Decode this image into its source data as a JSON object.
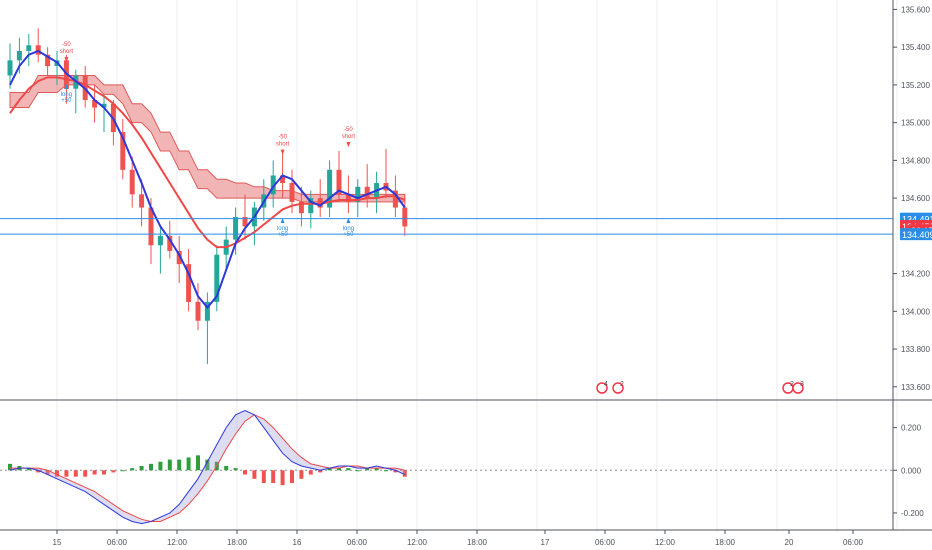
{
  "colors": {
    "up": "#26a69a",
    "down": "#ef5350",
    "ema_fast": "#2e38d8",
    "ema_slow": "#f04848",
    "cloud_red": "#e05a5a",
    "cloud_green": "#2e8b3e",
    "mid_green": "#2e9e3a",
    "price_line": "#2b8ee6",
    "price_badge_red": "#f23645",
    "price_badge_blue": "#2b8ee6",
    "grid": "#eceef2",
    "axis_text": "#50535e",
    "macd_line": "#2e38d8",
    "signal_line": "#f04848"
  },
  "price_axis": {
    "ticks": [
      "135.600",
      "135.400",
      "135.200",
      "135.000",
      "134.800",
      "134.600",
      "134.200",
      "134.000",
      "133.800",
      "133.600"
    ],
    "range": [
      133.53,
      135.65
    ]
  },
  "price_badges": [
    {
      "label": "134.491",
      "value": 134.491,
      "kind": "blue"
    },
    {
      "label": "134.452",
      "value": 134.452,
      "kind": "red"
    },
    {
      "label": "26:15",
      "value": 134.43,
      "kind": "red-small"
    },
    {
      "label": "134.409",
      "value": 134.409,
      "kind": "blue"
    }
  ],
  "macd_axis": {
    "ticks": [
      "0.200",
      "0.000",
      "-0.200"
    ],
    "range": [
      -0.28,
      0.32
    ]
  },
  "time_axis": {
    "labels": [
      "15",
      "06:00",
      "12:00",
      "18:00",
      "16",
      "06:00",
      "12:00",
      "18:00",
      "17",
      "06:00",
      "12:00",
      "18:00",
      "20",
      "06:00"
    ]
  },
  "signals": [
    {
      "text": "-50",
      "kind": "short"
    },
    {
      "text": "short",
      "kind": "short"
    },
    {
      "text": "long",
      "kind": "long"
    },
    {
      "text": "+50",
      "kind": "long"
    },
    {
      "text": "-50",
      "kind": "short"
    },
    {
      "text": "short",
      "kind": "short"
    },
    {
      "text": "long",
      "kind": "long"
    },
    {
      "text": "+50",
      "kind": "long"
    },
    {
      "text": "-50",
      "kind": "short"
    },
    {
      "text": "short",
      "kind": "short"
    },
    {
      "text": "long",
      "kind": "long"
    },
    {
      "text": "+50",
      "kind": "long"
    }
  ],
  "events": [
    {
      "count": "4"
    },
    {
      "count": "2"
    },
    {
      "count": "2"
    },
    {
      "count": "3"
    }
  ],
  "chart_data": {
    "type": "candlestick",
    "instrument_price_axis": "right",
    "price_ohlc": [
      [
        135.25,
        135.42,
        135.18,
        135.33
      ],
      [
        135.33,
        135.45,
        135.26,
        135.38
      ],
      [
        135.38,
        135.47,
        135.3,
        135.41
      ],
      [
        135.41,
        135.5,
        135.32,
        135.36
      ],
      [
        135.36,
        135.4,
        135.25,
        135.3
      ],
      [
        135.3,
        135.38,
        135.2,
        135.33
      ],
      [
        135.33,
        135.36,
        135.1,
        135.18
      ],
      [
        135.18,
        135.28,
        135.05,
        135.25
      ],
      [
        135.25,
        135.3,
        135.08,
        135.12
      ],
      [
        135.12,
        135.2,
        135.0,
        135.08
      ],
      [
        135.08,
        135.15,
        134.95,
        135.1
      ],
      [
        135.1,
        135.12,
        134.88,
        134.95
      ],
      [
        134.95,
        135.02,
        134.7,
        134.75
      ],
      [
        134.75,
        134.82,
        134.55,
        134.62
      ],
      [
        134.62,
        134.7,
        134.45,
        134.55
      ],
      [
        134.55,
        134.6,
        134.25,
        134.35
      ],
      [
        134.35,
        134.45,
        134.2,
        134.4
      ],
      [
        134.4,
        134.48,
        134.28,
        134.32
      ],
      [
        134.32,
        134.4,
        134.15,
        134.25
      ],
      [
        134.25,
        134.33,
        134.0,
        134.05
      ],
      [
        134.05,
        134.15,
        133.9,
        133.95
      ],
      [
        133.95,
        134.1,
        133.72,
        134.05
      ],
      [
        134.05,
        134.35,
        134.0,
        134.3
      ],
      [
        134.3,
        134.45,
        134.22,
        134.38
      ],
      [
        134.38,
        134.55,
        134.3,
        134.5
      ],
      [
        134.5,
        134.62,
        134.38,
        134.45
      ],
      [
        134.45,
        134.58,
        134.35,
        134.55
      ],
      [
        134.55,
        134.7,
        134.48,
        134.62
      ],
      [
        134.62,
        134.8,
        134.55,
        134.72
      ],
      [
        134.72,
        134.85,
        134.6,
        134.68
      ],
      [
        134.68,
        134.75,
        134.52,
        134.58
      ],
      [
        134.58,
        134.66,
        134.45,
        134.52
      ],
      [
        134.52,
        134.64,
        134.44,
        134.6
      ],
      [
        134.6,
        134.7,
        134.5,
        134.55
      ],
      [
        134.55,
        134.8,
        134.5,
        134.75
      ],
      [
        134.75,
        134.85,
        134.58,
        134.62
      ],
      [
        134.62,
        134.72,
        134.52,
        134.58
      ],
      [
        134.58,
        134.7,
        134.5,
        134.66
      ],
      [
        134.66,
        134.78,
        134.55,
        134.6
      ],
      [
        134.6,
        134.74,
        134.52,
        134.68
      ],
      [
        134.68,
        134.86,
        134.6,
        134.64
      ],
      [
        134.64,
        134.72,
        134.5,
        134.55
      ],
      [
        134.55,
        134.62,
        134.4,
        134.45
      ]
    ],
    "ema_fast": [
      135.2,
      135.3,
      135.36,
      135.38,
      135.35,
      135.32,
      135.26,
      135.22,
      135.18,
      135.12,
      135.08,
      135.02,
      134.92,
      134.8,
      134.68,
      134.55,
      134.45,
      134.38,
      134.3,
      134.2,
      134.08,
      134.02,
      134.08,
      134.22,
      134.36,
      134.44,
      134.5,
      134.58,
      134.66,
      134.72,
      134.7,
      134.64,
      134.58,
      134.56,
      134.6,
      134.64,
      134.62,
      134.6,
      134.62,
      134.64,
      134.66,
      134.62,
      134.55
    ],
    "ema_slow": [
      135.05,
      135.12,
      135.18,
      135.22,
      135.24,
      135.24,
      135.23,
      135.22,
      135.2,
      135.17,
      135.14,
      135.1,
      135.05,
      134.99,
      134.92,
      134.84,
      134.76,
      134.68,
      134.6,
      134.52,
      134.44,
      134.38,
      134.34,
      134.34,
      134.36,
      134.39,
      134.42,
      134.46,
      134.5,
      134.54,
      134.56,
      134.57,
      134.57,
      134.57,
      134.58,
      134.59,
      134.59,
      134.59,
      134.6,
      134.6,
      134.61,
      134.61,
      134.59
    ],
    "cloud_upper": [
      135.16,
      135.16,
      135.16,
      135.25,
      135.25,
      135.25,
      135.25,
      135.25,
      135.25,
      135.25,
      135.2,
      135.2,
      135.2,
      135.1,
      135.1,
      135.05,
      134.95,
      134.95,
      134.85,
      134.85,
      134.75,
      134.75,
      134.7,
      134.7,
      134.68,
      134.68,
      134.66,
      134.66,
      134.64,
      134.64,
      134.64,
      134.62,
      134.62,
      134.62,
      134.62,
      134.62,
      134.62,
      134.62,
      134.62,
      134.62,
      134.62,
      134.62,
      134.62
    ],
    "cloud_lower": [
      135.08,
      135.08,
      135.08,
      135.16,
      135.16,
      135.16,
      135.2,
      135.2,
      135.2,
      135.2,
      135.15,
      135.15,
      135.1,
      135.0,
      135.0,
      134.95,
      134.85,
      134.85,
      134.75,
      134.75,
      134.65,
      134.65,
      134.6,
      134.6,
      134.6,
      134.6,
      134.6,
      134.6,
      134.6,
      134.6,
      134.6,
      134.58,
      134.58,
      134.58,
      134.58,
      134.58,
      134.58,
      134.58,
      134.58,
      134.58,
      134.58,
      134.58,
      134.58
    ],
    "macd": {
      "macd_line": [
        0.0,
        0.01,
        0.01,
        0.0,
        -0.02,
        -0.04,
        -0.06,
        -0.08,
        -0.1,
        -0.13,
        -0.16,
        -0.19,
        -0.22,
        -0.24,
        -0.25,
        -0.24,
        -0.22,
        -0.2,
        -0.16,
        -0.1,
        -0.04,
        0.04,
        0.12,
        0.2,
        0.26,
        0.28,
        0.26,
        0.2,
        0.14,
        0.08,
        0.04,
        0.02,
        0.01,
        0.0,
        0.01,
        0.02,
        0.02,
        0.01,
        0.01,
        0.02,
        0.01,
        0.0,
        -0.02
      ],
      "signal_line": [
        0.01,
        0.01,
        0.01,
        0.01,
        0.0,
        -0.02,
        -0.04,
        -0.06,
        -0.08,
        -0.1,
        -0.13,
        -0.16,
        -0.19,
        -0.21,
        -0.23,
        -0.24,
        -0.24,
        -0.22,
        -0.2,
        -0.16,
        -0.11,
        -0.05,
        0.02,
        0.1,
        0.17,
        0.23,
        0.26,
        0.24,
        0.2,
        0.15,
        0.1,
        0.06,
        0.03,
        0.02,
        0.01,
        0.01,
        0.02,
        0.02,
        0.01,
        0.01,
        0.01,
        0.01,
        0.0
      ],
      "histogram": [
        0.03,
        0.02,
        0.01,
        -0.01,
        -0.02,
        -0.03,
        -0.03,
        -0.03,
        -0.03,
        -0.02,
        -0.02,
        -0.01,
        0.0,
        0.01,
        0.02,
        0.03,
        0.04,
        0.05,
        0.05,
        0.06,
        0.07,
        0.05,
        0.04,
        0.02,
        0.01,
        -0.02,
        -0.04,
        -0.06,
        -0.06,
        -0.07,
        -0.06,
        -0.04,
        -0.02,
        -0.01,
        0.01,
        0.01,
        0.01,
        0.0,
        0.01,
        0.01,
        0.0,
        -0.01,
        -0.03
      ]
    }
  }
}
